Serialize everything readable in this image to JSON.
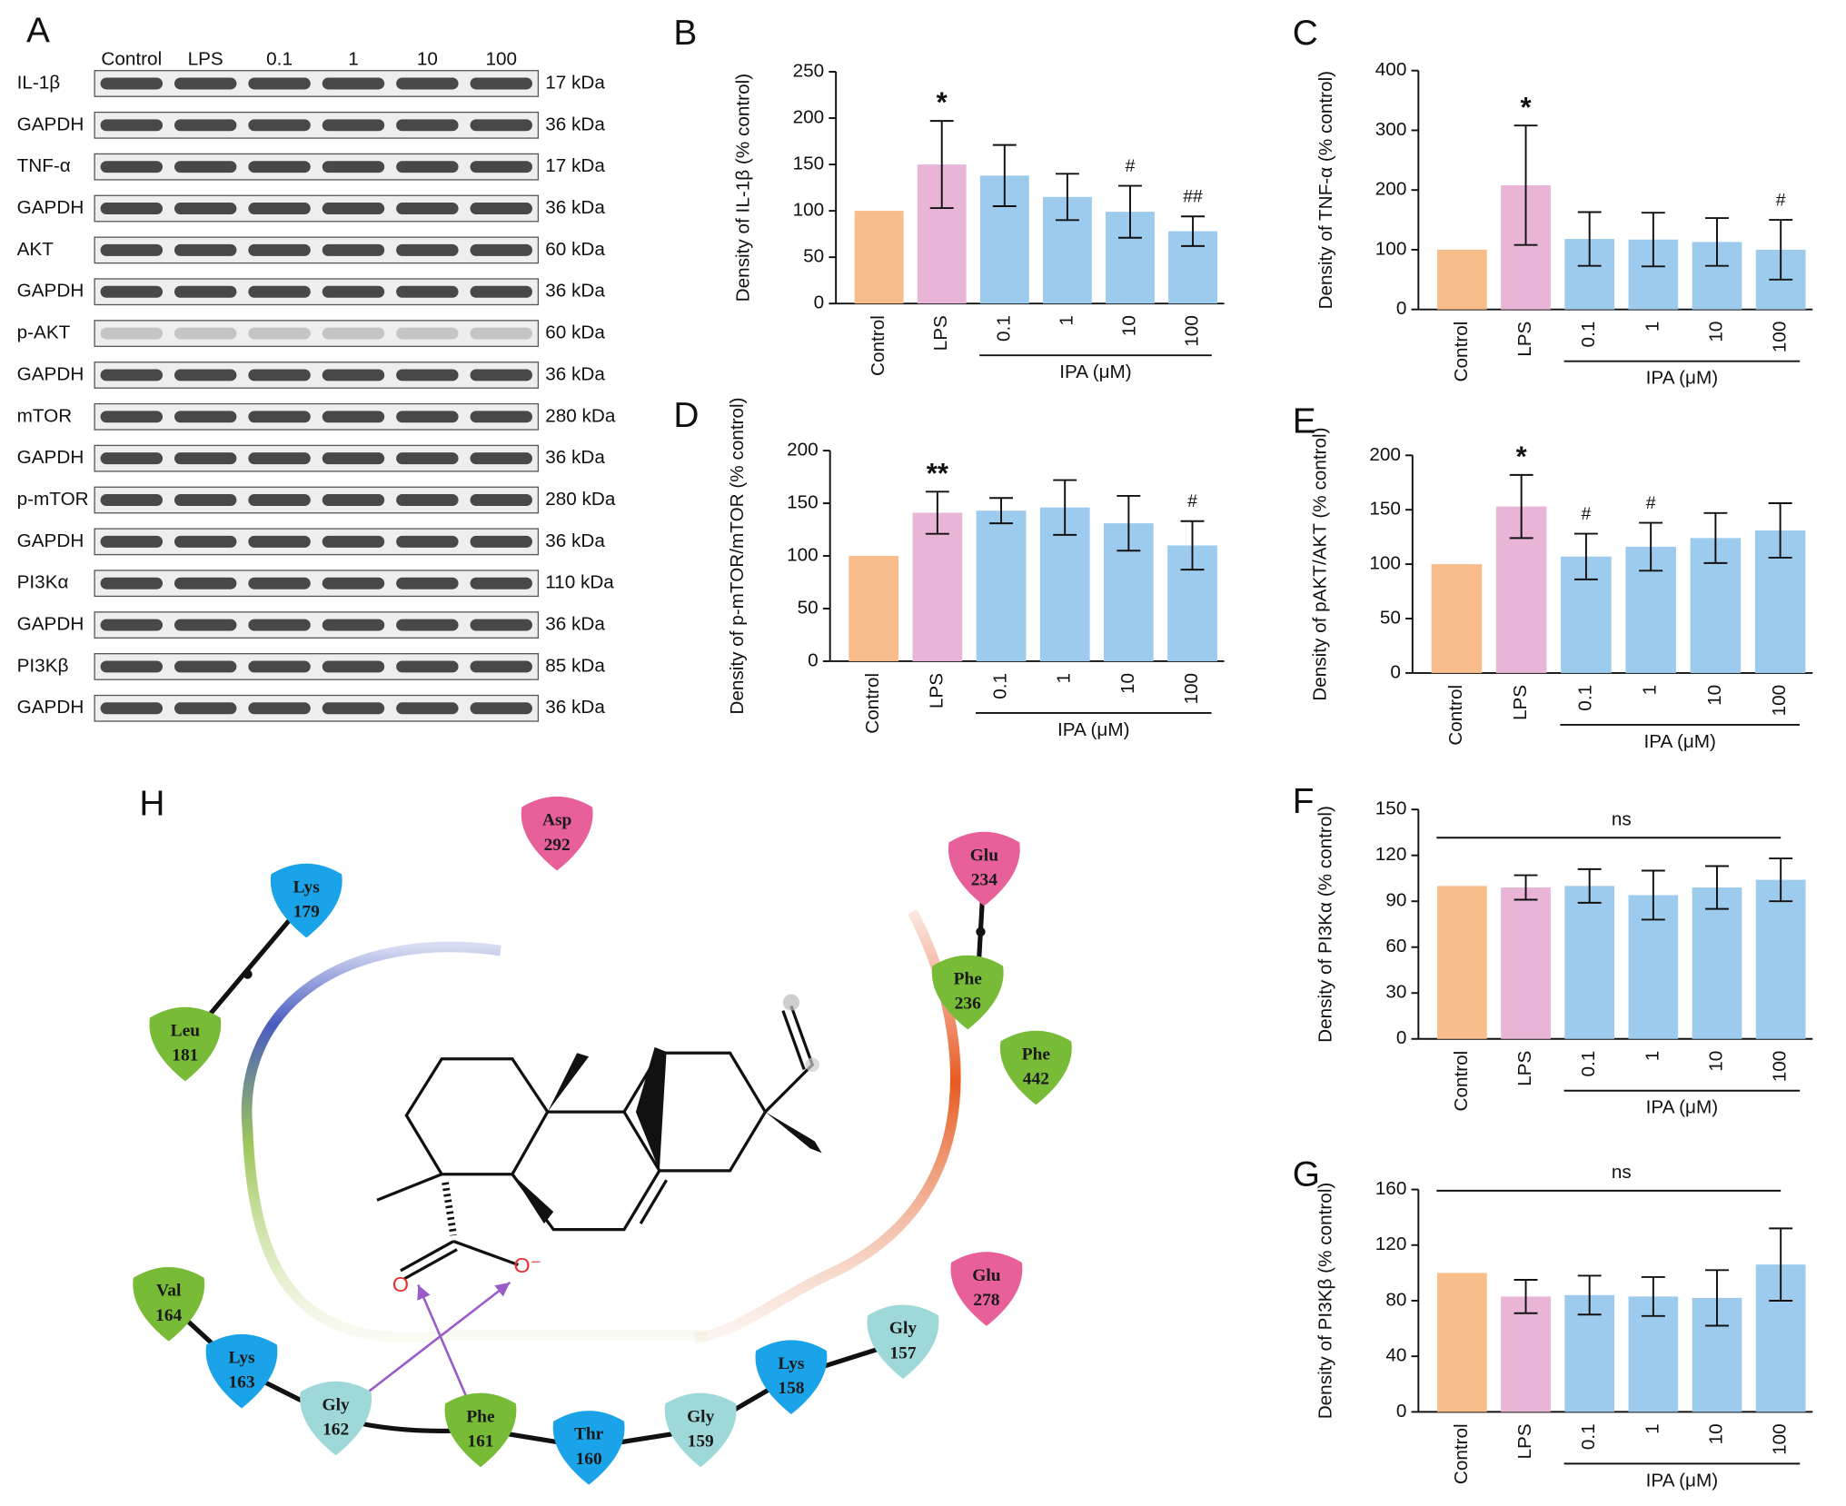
{
  "blot": {
    "panel": "A",
    "lanes": [
      "Control",
      "LPS",
      "0.1",
      "1",
      "10",
      "100"
    ],
    "rows": [
      {
        "label": "IL-1β",
        "size": "17 kDa"
      },
      {
        "label": "GAPDH",
        "size": "36 kDa"
      },
      {
        "label": "TNF-α",
        "size": "17 kDa"
      },
      {
        "label": "GAPDH",
        "size": "36 kDa"
      },
      {
        "label": "AKT",
        "size": "60 kDa"
      },
      {
        "label": "GAPDH",
        "size": "36 kDa"
      },
      {
        "label": "p-AKT",
        "size": "60 kDa"
      },
      {
        "label": "GAPDH",
        "size": "36 kDa"
      },
      {
        "label": "mTOR",
        "size": "280 kDa"
      },
      {
        "label": "GAPDH",
        "size": "36 kDa"
      },
      {
        "label": "p-mTOR",
        "size": "280 kDa"
      },
      {
        "label": "GAPDH",
        "size": "36 kDa"
      },
      {
        "label": "PI3Kα",
        "size": "110 kDa"
      },
      {
        "label": "GAPDH",
        "size": "36 kDa"
      },
      {
        "label": "PI3Kβ",
        "size": "85 kDa"
      },
      {
        "label": "GAPDH",
        "size": "36 kDa"
      }
    ]
  },
  "chart_data": [
    {
      "type": "bar",
      "panel": "B",
      "ylabel": "Density of IL-1β (% control)",
      "group_label": "IPA (μM)",
      "categories": [
        "Control",
        "LPS",
        "0.1",
        "1",
        "10",
        "100"
      ],
      "values": [
        100,
        150,
        138,
        115,
        99,
        78
      ],
      "errors": [
        0,
        47,
        33,
        25,
        28,
        16
      ],
      "annotations": [
        null,
        "*",
        null,
        null,
        "#",
        "##"
      ],
      "colors": [
        "#f9bd8c",
        "#e8b5d7",
        "#9dcbed",
        "#9dcbed",
        "#9dcbed",
        "#9dcbed"
      ],
      "ylim": [
        0,
        250
      ],
      "yticks": [
        0,
        50,
        100,
        150,
        200,
        250
      ]
    },
    {
      "type": "bar",
      "panel": "C",
      "ylabel": "Density of TNF-α (% control)",
      "group_label": "IPA (μM)",
      "categories": [
        "Control",
        "LPS",
        "0.1",
        "1",
        "10",
        "100"
      ],
      "values": [
        100,
        208,
        118,
        117,
        113,
        100
      ],
      "errors": [
        0,
        100,
        45,
        45,
        40,
        50
      ],
      "annotations": [
        null,
        "*",
        null,
        null,
        null,
        "#"
      ],
      "colors": [
        "#f9bd8c",
        "#e8b5d7",
        "#9dcbed",
        "#9dcbed",
        "#9dcbed",
        "#9dcbed"
      ],
      "ylim": [
        0,
        400
      ],
      "yticks": [
        0,
        100,
        200,
        300,
        400
      ]
    },
    {
      "type": "bar",
      "panel": "D",
      "ylabel": "Density of p-mTOR/mTOR (% control)",
      "group_label": "IPA (μM)",
      "categories": [
        "Control",
        "LPS",
        "0.1",
        "1",
        "10",
        "100"
      ],
      "values": [
        100,
        141,
        143,
        146,
        131,
        110
      ],
      "errors": [
        0,
        20,
        12,
        26,
        26,
        23
      ],
      "annotations": [
        null,
        "**",
        null,
        null,
        null,
        "#"
      ],
      "colors": [
        "#f9bd8c",
        "#e8b5d7",
        "#9dcbed",
        "#9dcbed",
        "#9dcbed",
        "#9dcbed"
      ],
      "ylim": [
        0,
        200
      ],
      "yticks": [
        0,
        50,
        100,
        150,
        200
      ]
    },
    {
      "type": "bar",
      "panel": "E",
      "ylabel": "Density of pAKT/AKT (% control)",
      "group_label": "IPA (μM)",
      "categories": [
        "Control",
        "LPS",
        "0.1",
        "1",
        "10",
        "100"
      ],
      "values": [
        100,
        153,
        107,
        116,
        124,
        131
      ],
      "errors": [
        0,
        29,
        21,
        22,
        23,
        25
      ],
      "annotations": [
        null,
        "*",
        "#",
        "#",
        null,
        null
      ],
      "colors": [
        "#f9bd8c",
        "#e8b5d7",
        "#9dcbed",
        "#9dcbed",
        "#9dcbed",
        "#9dcbed"
      ],
      "ylim": [
        0,
        200
      ],
      "yticks": [
        0,
        50,
        100,
        150,
        200
      ]
    },
    {
      "type": "bar",
      "panel": "F",
      "ylabel": "Density of PI3Kα (% control)",
      "group_label": "IPA (μM)",
      "ns": "ns",
      "categories": [
        "Control",
        "LPS",
        "0.1",
        "1",
        "10",
        "100"
      ],
      "values": [
        100,
        99,
        100,
        94,
        99,
        104
      ],
      "errors": [
        0,
        8,
        11,
        16,
        14,
        14
      ],
      "colors": [
        "#f9bd8c",
        "#e8b5d7",
        "#9dcbed",
        "#9dcbed",
        "#9dcbed",
        "#9dcbed"
      ],
      "ylim": [
        0,
        150
      ],
      "yticks": [
        0,
        30,
        60,
        90,
        120,
        150
      ]
    },
    {
      "type": "bar",
      "panel": "G",
      "ylabel": "Density of PI3Kβ (% control)",
      "group_label": "IPA (μM)",
      "ns": "ns",
      "categories": [
        "Control",
        "LPS",
        "0.1",
        "1",
        "10",
        "100"
      ],
      "values": [
        100,
        83,
        84,
        83,
        82,
        106
      ],
      "errors": [
        0,
        12,
        14,
        14,
        20,
        26
      ],
      "colors": [
        "#f9bd8c",
        "#e8b5d7",
        "#9dcbed",
        "#9dcbed",
        "#9dcbed",
        "#9dcbed"
      ],
      "ylim": [
        0,
        160
      ],
      "yticks": [
        0,
        40,
        80,
        120,
        160
      ]
    }
  ],
  "diagram": {
    "panel": "H",
    "ligand_atoms": [
      "O",
      "O⁻"
    ],
    "nodes": [
      {
        "residue": "Asp",
        "number": "292",
        "color": "#e8609a"
      },
      {
        "residue": "Lys",
        "number": "179",
        "color": "#1aa3e8"
      },
      {
        "residue": "Leu",
        "number": "181",
        "color": "#77bb37"
      },
      {
        "residue": "Glu",
        "number": "234",
        "color": "#e8609a"
      },
      {
        "residue": "Phe",
        "number": "236",
        "color": "#77bb37"
      },
      {
        "residue": "Phe",
        "number": "442",
        "color": "#77bb37"
      },
      {
        "residue": "Val",
        "number": "164",
        "color": "#77bb37"
      },
      {
        "residue": "Lys",
        "number": "163",
        "color": "#1aa3e8"
      },
      {
        "residue": "Gly",
        "number": "162",
        "color": "#9ed8d8"
      },
      {
        "residue": "Phe",
        "number": "161",
        "color": "#77bb37"
      },
      {
        "residue": "Thr",
        "number": "160",
        "color": "#1aa3e8"
      },
      {
        "residue": "Gly",
        "number": "159",
        "color": "#9ed8d8"
      },
      {
        "residue": "Lys",
        "number": "158",
        "color": "#1aa3e8"
      },
      {
        "residue": "Gly",
        "number": "157",
        "color": "#9ed8d8"
      },
      {
        "residue": "Glu",
        "number": "278",
        "color": "#e8609a"
      }
    ]
  }
}
